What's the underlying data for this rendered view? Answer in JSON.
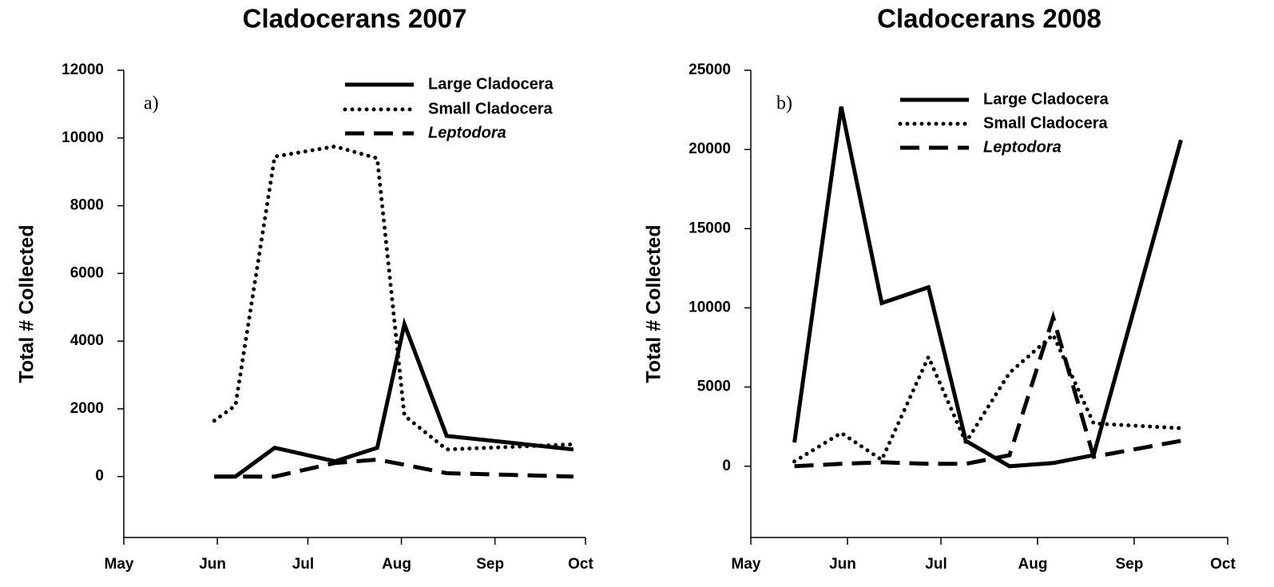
{
  "chart_data": [
    {
      "type": "line",
      "title": "Cladocerans 2007",
      "panel_label": "a)",
      "ylabel": "Total # Collected",
      "x": [
        30,
        37,
        50,
        70,
        84,
        93,
        107,
        149
      ],
      "xlim": [
        0,
        153
      ],
      "xticks": [
        {
          "value": 0,
          "label": "May"
        },
        {
          "value": 31,
          "label": "Jun"
        },
        {
          "value": 61,
          "label": "Jul"
        },
        {
          "value": 92,
          "label": "Aug"
        },
        {
          "value": 123,
          "label": "Sep"
        },
        {
          "value": 153,
          "label": "Oct"
        }
      ],
      "ylim": [
        -1800,
        12000
      ],
      "yticks": [
        0,
        2000,
        4000,
        6000,
        8000,
        10000,
        12000
      ],
      "series": [
        {
          "name": "Large Cladocera",
          "color": "#000000",
          "linestyle": "solid",
          "values": [
            0,
            0,
            850,
            450,
            850,
            4500,
            1200,
            800
          ]
        },
        {
          "name": "Small Cladocera",
          "color": "#000000",
          "linestyle": "dotted",
          "values": [
            1650,
            2100,
            9450,
            9750,
            9400,
            1800,
            800,
            950
          ]
        },
        {
          "name": "Leptodora",
          "color": "#000000",
          "linestyle": "dashed",
          "italic": true,
          "values": [
            0,
            0,
            0,
            400,
            500,
            350,
            100,
            0
          ]
        }
      ]
    },
    {
      "type": "line",
      "title": "Cladocerans 2008",
      "panel_label": "b)",
      "ylabel": "Total # Collected",
      "x": [
        14,
        29,
        42,
        57,
        69,
        83,
        97,
        110,
        138
      ],
      "xlim": [
        0,
        153
      ],
      "xticks": [
        {
          "value": 0,
          "label": "May"
        },
        {
          "value": 31,
          "label": "Jun"
        },
        {
          "value": 61,
          "label": "Jul"
        },
        {
          "value": 92,
          "label": "Aug"
        },
        {
          "value": 123,
          "label": "Sep"
        },
        {
          "value": 153,
          "label": "Oct"
        }
      ],
      "ylim": [
        -4500,
        25000
      ],
      "yticks": [
        0,
        5000,
        10000,
        15000,
        20000,
        25000
      ],
      "series": [
        {
          "name": "Large Cladocera",
          "color": "#000000",
          "linestyle": "solid",
          "values": [
            1500,
            22700,
            10300,
            11300,
            1600,
            0,
            200,
            700,
            20600
          ]
        },
        {
          "name": "Small Cladocera",
          "color": "#000000",
          "linestyle": "dotted",
          "values": [
            300,
            2100,
            400,
            6900,
            1500,
            5900,
            8300,
            2700,
            2400
          ]
        },
        {
          "name": "Leptodora",
          "color": "#000000",
          "linestyle": "dashed",
          "italic": true,
          "values": [
            0,
            150,
            250,
            150,
            150,
            700,
            9400,
            600,
            1600
          ]
        }
      ]
    }
  ]
}
